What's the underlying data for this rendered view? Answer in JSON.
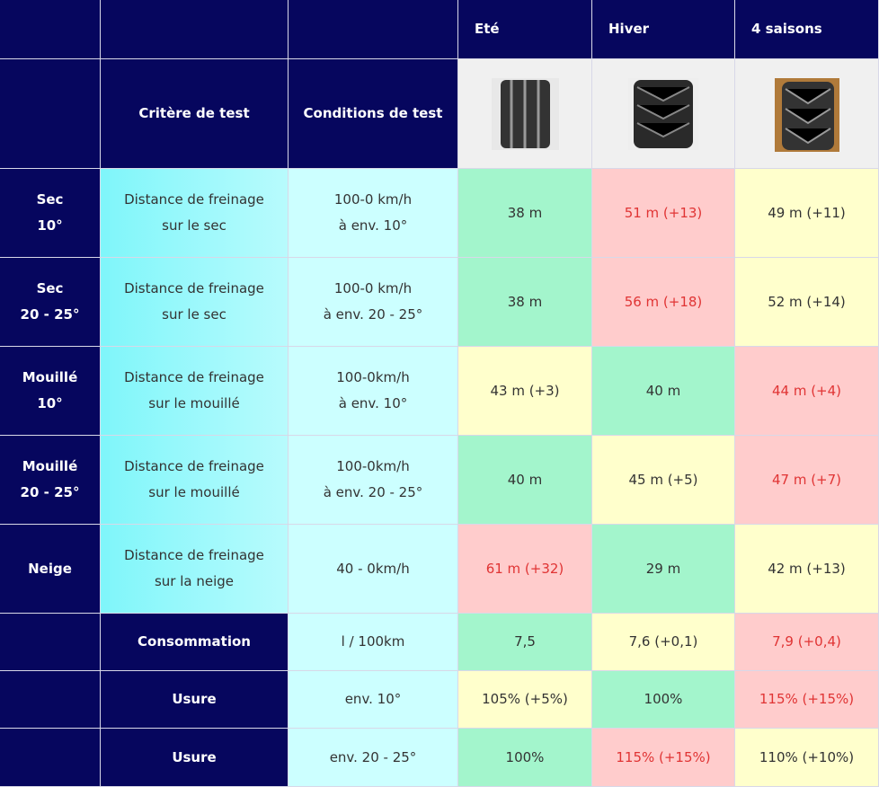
{
  "header": {
    "columns": [
      "Eté",
      "Hiver",
      "4 saisons"
    ],
    "criterion": "Critère de test",
    "conditions": "Conditions de test"
  },
  "rows": [
    {
      "label": [
        "Sec",
        "10°"
      ],
      "criterion": [
        "Distance de freinage",
        "sur le sec"
      ],
      "conditions": [
        "100-0 km/h",
        "à env. 10°"
      ],
      "cells": [
        {
          "text": "38 m",
          "color": "green"
        },
        {
          "text": "51 m (+13)",
          "color": "red"
        },
        {
          "text": "49 m (+11)",
          "color": "yellow"
        }
      ]
    },
    {
      "label": [
        "Sec",
        "20 - 25°"
      ],
      "criterion": [
        "Distance de freinage",
        "sur le sec"
      ],
      "conditions": [
        "100-0 km/h",
        "à env. 20 - 25°"
      ],
      "cells": [
        {
          "text": "38 m",
          "color": "green"
        },
        {
          "text": "56 m (+18)",
          "color": "red"
        },
        {
          "text": "52 m (+14)",
          "color": "yellow"
        }
      ]
    },
    {
      "label": [
        "Mouillé",
        "10°"
      ],
      "criterion": [
        "Distance de freinage",
        "sur le mouillé"
      ],
      "conditions": [
        "100-0km/h",
        "à env. 10°"
      ],
      "cells": [
        {
          "text": "43 m (+3)",
          "color": "yellow"
        },
        {
          "text": "40 m",
          "color": "green"
        },
        {
          "text": "44 m (+4)",
          "color": "red"
        }
      ]
    },
    {
      "label": [
        "Mouillé",
        "20 - 25°"
      ],
      "criterion": [
        "Distance de freinage",
        "sur le mouillé"
      ],
      "conditions": [
        "100-0km/h",
        "à env. 20 - 25°"
      ],
      "cells": [
        {
          "text": "40 m",
          "color": "green"
        },
        {
          "text": "45 m (+5)",
          "color": "yellow"
        },
        {
          "text": "47 m (+7)",
          "color": "red"
        }
      ]
    },
    {
      "label": [
        "Neige"
      ],
      "criterion": [
        "Distance de freinage",
        "sur la neige"
      ],
      "conditions": [
        "40 - 0km/h"
      ],
      "cells": [
        {
          "text": "61 m (+32)",
          "color": "red"
        },
        {
          "text": "29 m",
          "color": "green"
        },
        {
          "text": "42 m (+13)",
          "color": "yellow"
        }
      ]
    },
    {
      "label": [],
      "criterion": [
        "Consommation"
      ],
      "conditions": [
        "l / 100km"
      ],
      "cells": [
        {
          "text": "7,5",
          "color": "green"
        },
        {
          "text": "7,6 (+0,1)",
          "color": "yellow"
        },
        {
          "text": "7,9 (+0,4)",
          "color": "red"
        }
      ]
    },
    {
      "label": [],
      "criterion": [
        "Usure"
      ],
      "conditions": [
        "env. 10°"
      ],
      "cells": [
        {
          "text": "105% (+5%)",
          "color": "yellow"
        },
        {
          "text": "100%",
          "color": "green"
        },
        {
          "text": "115% (+15%)",
          "color": "red"
        }
      ]
    },
    {
      "label": [],
      "criterion": [
        "Usure"
      ],
      "conditions": [
        "env. 20 - 25°"
      ],
      "cells": [
        {
          "text": "100%",
          "color": "green"
        },
        {
          "text": "115% (+15%)",
          "color": "red"
        },
        {
          "text": "110% (+10%)",
          "color": "yellow"
        }
      ]
    }
  ]
}
